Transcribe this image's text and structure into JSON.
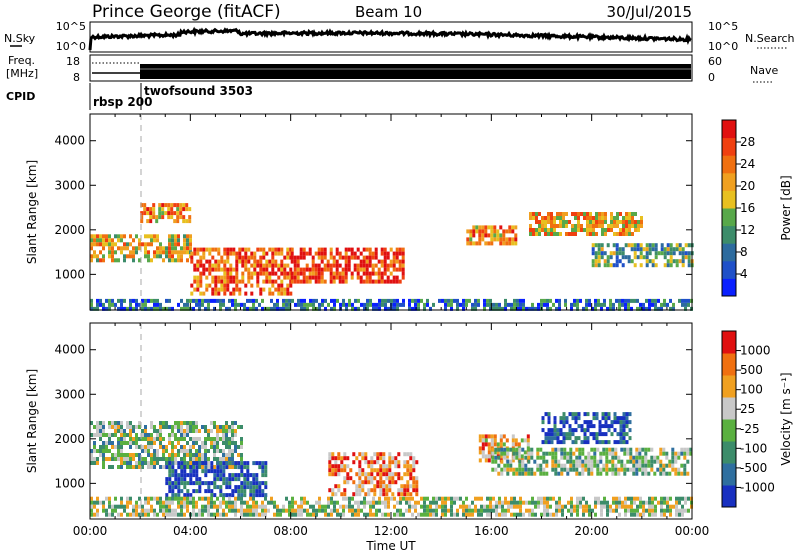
{
  "header": {
    "station": "Prince George (fitACF)",
    "beam": "Beam 10",
    "date": "30/Jul/2015"
  },
  "nsky_panel": {
    "left_label": "N.Sky",
    "right_label": "N.Search",
    "left_ticks": [
      "10^5",
      "10^0"
    ],
    "right_ticks": [
      "10^5",
      "10^0"
    ]
  },
  "freq_panel": {
    "label_line1": "Freq.",
    "label_line2": "[MHz]",
    "left_ticks": [
      "18",
      "8"
    ],
    "right_ticks": [
      "60",
      "0"
    ],
    "right_label": "Nave"
  },
  "cpid_panel": {
    "label": "CPID",
    "modes": [
      {
        "name": "rbsp 200",
        "start_hour": 0.0
      },
      {
        "name": "twofsound 3503",
        "start_hour": 2.0
      }
    ]
  },
  "chart_data": [
    {
      "type": "heatmap",
      "name": "power",
      "ylabel": "Slant Range [km]",
      "xlabel": "",
      "yticks": [
        1000,
        2000,
        3000,
        4000
      ],
      "ylim": [
        200,
        4600
      ],
      "xlim": [
        0,
        24
      ],
      "colorbar": {
        "label": "Power [dB]",
        "ticks": [
          "28",
          "24",
          "20",
          "16",
          "12",
          "8",
          "4"
        ],
        "colors": [
          "#0a20ff",
          "#1f50c8",
          "#2d6b9e",
          "#3c8c6a",
          "#58a84a",
          "#e8c020",
          "#f0a020",
          "#f07010",
          "#f04010",
          "#e01010"
        ]
      },
      "echo_regions": [
        {
          "t0": 0.0,
          "t1": 4.0,
          "r0": 1300,
          "r1": 1900,
          "level": 0.6
        },
        {
          "t0": 2.0,
          "t1": 4.0,
          "r0": 2200,
          "r1": 2600,
          "level": 0.7
        },
        {
          "t0": 4.0,
          "t1": 8.0,
          "r0": 600,
          "r1": 1600,
          "level": 0.8
        },
        {
          "t0": 8.0,
          "t1": 12.5,
          "r0": 800,
          "r1": 1600,
          "level": 0.9
        },
        {
          "t0": 15.0,
          "t1": 17.0,
          "r0": 1700,
          "r1": 2100,
          "level": 0.7
        },
        {
          "t0": 17.5,
          "t1": 22.0,
          "r0": 1900,
          "r1": 2400,
          "level": 0.65
        },
        {
          "t0": 20.0,
          "t1": 24.0,
          "r0": 1200,
          "r1": 1700,
          "level": 0.4
        },
        {
          "t0": 0.0,
          "t1": 24.0,
          "r0": 200,
          "r1": 450,
          "level": 0.25
        }
      ]
    },
    {
      "type": "heatmap",
      "name": "velocity",
      "ylabel": "Slant Range [km]",
      "xlabel": "Time UT",
      "xticks": [
        "00:00",
        "04:00",
        "08:00",
        "12:00",
        "16:00",
        "20:00",
        "00:00"
      ],
      "yticks": [
        1000,
        2000,
        3000,
        4000
      ],
      "ylim": [
        200,
        4600
      ],
      "xlim": [
        0,
        24
      ],
      "colorbar": {
        "label": "Velocity [m s⁻¹]",
        "ticks": [
          "1000",
          "500",
          "100",
          "25",
          "-25",
          "-100",
          "-500",
          "-1000"
        ],
        "colors": [
          "#1830c0",
          "#2f6f9f",
          "#3c8c6a",
          "#5ab040",
          "#c8c8c8",
          "#f0a020",
          "#f07010",
          "#e01010"
        ]
      },
      "echo_regions": [
        {
          "t0": 0.0,
          "t1": 6.0,
          "r0": 1400,
          "r1": 2400,
          "level": 0.45
        },
        {
          "t0": 3.0,
          "t1": 7.0,
          "r0": 700,
          "r1": 1500,
          "level": 0.1
        },
        {
          "t0": 9.5,
          "t1": 13.0,
          "r0": 800,
          "r1": 1700,
          "level": 0.75
        },
        {
          "t0": 15.5,
          "t1": 17.5,
          "r0": 1500,
          "r1": 2100,
          "level": 0.7
        },
        {
          "t0": 18.0,
          "t1": 21.5,
          "r0": 1900,
          "r1": 2600,
          "level": 0.12
        },
        {
          "t0": 16.0,
          "t1": 24.0,
          "r0": 1200,
          "r1": 1800,
          "level": 0.45
        },
        {
          "t0": 0.0,
          "t1": 24.0,
          "r0": 300,
          "r1": 700,
          "level": 0.5
        }
      ]
    }
  ]
}
